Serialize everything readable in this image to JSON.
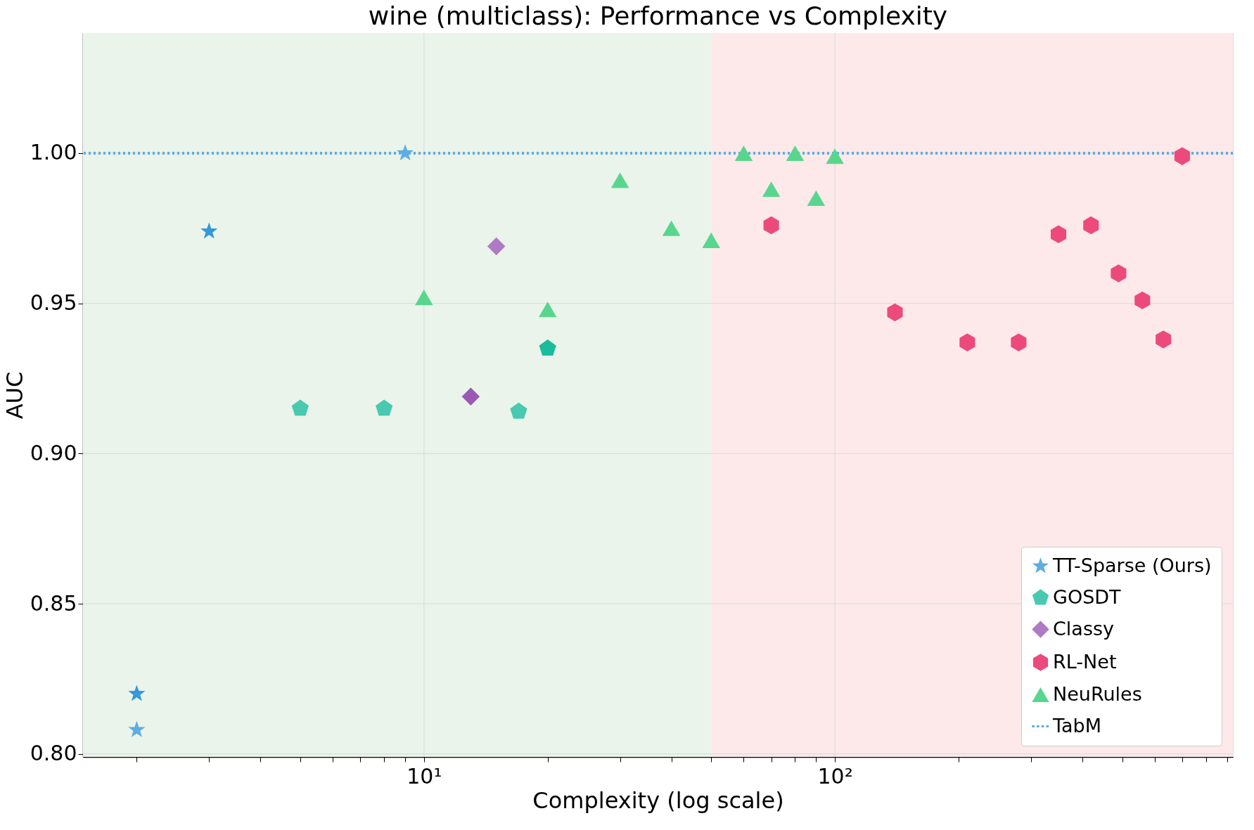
{
  "chart_data": {
    "type": "scatter",
    "title": "wine (multiclass): Performance vs Complexity",
    "xlabel": "Complexity (log scale)",
    "ylabel": "AUC",
    "log": "x",
    "grid": true,
    "legend": "bottom right",
    "xlim": [
      1.48,
      930
    ],
    "ylim": [
      0.799,
      1.04
    ],
    "xticks": [
      {
        "value": 2,
        "label": null
      },
      {
        "value": 3,
        "label": null
      },
      {
        "value": 4,
        "label": null
      },
      {
        "value": 5,
        "label": null
      },
      {
        "value": 6,
        "label": null
      },
      {
        "value": 7,
        "label": null
      },
      {
        "value": 8,
        "label": null
      },
      {
        "value": 9,
        "label": null
      },
      {
        "value": 10,
        "label": "10¹"
      },
      {
        "value": 20,
        "label": null
      },
      {
        "value": 30,
        "label": null
      },
      {
        "value": 40,
        "label": null
      },
      {
        "value": 50,
        "label": null
      },
      {
        "value": 60,
        "label": null
      },
      {
        "value": 70,
        "label": null
      },
      {
        "value": 80,
        "label": null
      },
      {
        "value": 90,
        "label": null
      },
      {
        "value": 100,
        "label": "10²"
      },
      {
        "value": 200,
        "label": null
      },
      {
        "value": 300,
        "label": null
      },
      {
        "value": 400,
        "label": null
      },
      {
        "value": 500,
        "label": null
      },
      {
        "value": 600,
        "label": null
      },
      {
        "value": 700,
        "label": null
      },
      {
        "value": 800,
        "label": null
      },
      {
        "value": 900,
        "label": null
      }
    ],
    "yticks": [
      {
        "value": 0.8,
        "label": "0.80"
      },
      {
        "value": 0.85,
        "label": "0.85"
      },
      {
        "value": 0.9,
        "label": "0.90"
      },
      {
        "value": 0.95,
        "label": "0.95"
      },
      {
        "value": 1.0,
        "label": "1.00"
      }
    ],
    "bands": [
      {
        "axis": "x",
        "from": 1.48,
        "to": 50,
        "color": "#eaf4ea"
      },
      {
        "axis": "x",
        "from": 50,
        "to": 930,
        "color": "#fde9ea"
      }
    ],
    "ref_lines": [
      {
        "axis": "y",
        "value": 1.0,
        "label": "TabM",
        "color": "#5dade2",
        "line_style": "dotted"
      }
    ],
    "series": [
      {
        "name": "TT-Sparse (Ours)",
        "color": "#5dade2",
        "marker": "star",
        "x": [
          2,
          2,
          3,
          9
        ],
        "values": [
          0.82,
          0.808,
          0.974,
          1.0
        ],
        "colors": [
          "#3498db",
          "#5dade2",
          "#3498db",
          "#5dade2"
        ]
      },
      {
        "name": "GOSDT",
        "color": "#48c9b0",
        "x": [
          5,
          8,
          17,
          20
        ],
        "values": [
          0.915,
          0.915,
          0.914,
          0.935
        ],
        "colors": [
          "#48c9b0",
          "#48c9b0",
          "#48c9b0",
          "#1abc9c"
        ]
      },
      {
        "name": "Classy",
        "color": "#af7ac5",
        "marker": "diamond",
        "x": [
          13,
          15
        ],
        "values": [
          0.919,
          0.969
        ],
        "colors": [
          "#9b59b6",
          "#af7ac5"
        ]
      },
      {
        "name": "RL-Net",
        "color": "#ec4a7c",
        "x": [
          70,
          140,
          210,
          280,
          350,
          420,
          490,
          560,
          630,
          700
        ],
        "values": [
          0.976,
          0.947,
          0.937,
          0.937,
          0.973,
          0.976,
          0.96,
          0.951,
          0.938,
          0.999
        ]
      },
      {
        "name": "NeuRules",
        "color": "#58d68d",
        "marker": "triangle",
        "x": [
          10,
          20,
          30,
          40,
          50,
          60,
          70,
          80,
          90,
          100
        ],
        "values": [
          0.952,
          0.948,
          0.991,
          0.975,
          0.971,
          1.0,
          0.988,
          1.0,
          0.985,
          0.999
        ]
      }
    ]
  }
}
